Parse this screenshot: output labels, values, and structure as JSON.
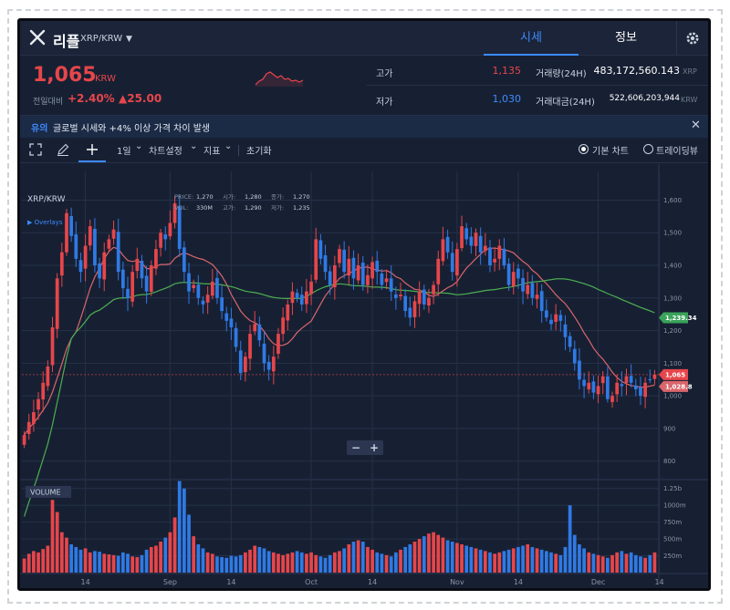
{
  "header": {
    "coin_name": "리플",
    "coin_pair": "XRP/KRW",
    "tabs": [
      {
        "label": "시세"
      },
      {
        "label": "정보"
      }
    ]
  },
  "price": {
    "current": "1,065",
    "unit": "KRW",
    "change_label": "전일대비",
    "change_pct": "+2.40%",
    "change_abs": "▲25.00"
  },
  "stats": {
    "high_label": "고가",
    "high_value": "1,135",
    "low_label": "저가",
    "low_value": "1,030",
    "volume_label": "거래량(24H)",
    "volume_value": "483,172,560.143",
    "volume_unit": "XRP",
    "amount_label": "거래대금(24H)",
    "amount_value": "522,606,203,944",
    "amount_unit": "KRW"
  },
  "notice": {
    "tag": "유의",
    "text": "글로벌 시세와 +4% 이상 가격 차이 발생"
  },
  "toolbar": {
    "interval": "1일",
    "chart_settings": "차트설정",
    "indicators": "지표",
    "reset": "초기화",
    "basic_chart": "기본 차트",
    "tradingview": "트레이딩뷰"
  },
  "chart_info": {
    "symbol": "XRP/KRW",
    "overlays": "▶ Overlays",
    "price_label": "PRICE:",
    "price_val": "1,270",
    "vol_label": "VOL:",
    "vol_val": "330M",
    "open_label": "시가:",
    "open_val": "1,280",
    "high_label": "고가:",
    "high_val": "1,290",
    "close_label": "종가:",
    "close_val": "1,270",
    "low_label": "저가:",
    "low_val": "1,235",
    "volume_panel": "VOLUME",
    "ma_long_badge": "1,239.34",
    "last_price_badge": "1,065",
    "ma_short_badge": "1,028.8"
  },
  "chart_data": {
    "type": "candlestick",
    "price_axis": {
      "ticks": [
        800,
        900,
        1000,
        1100,
        1200,
        1300,
        1400,
        1500,
        1600
      ],
      "tick_labels": [
        "800",
        "900",
        "1,000",
        "1,100",
        "1,200",
        "1,300",
        "1,400",
        "1,500",
        "1,600"
      ],
      "range": [
        760,
        1660
      ]
    },
    "volume_axis": {
      "ticks": [
        250,
        500,
        750,
        1000,
        1250
      ],
      "tick_labels": [
        "250m",
        "500m",
        "750m",
        "1000m",
        "1.25b"
      ],
      "range": [
        0,
        1300
      ]
    },
    "x_labels": [
      "14",
      "Sep",
      "14",
      "Oct",
      "14",
      "Nov",
      "14",
      "Dec",
      "14"
    ],
    "x_label_days": [
      13,
      31,
      44,
      61,
      74,
      92,
      105,
      122,
      135
    ],
    "last_price_line": 1065,
    "ma_long_end": 1239.34,
    "ma_short_end": 1028.8,
    "colors": {
      "up": "#e6464b",
      "down": "#2f7ae5",
      "ma_short": "#d9666b",
      "ma_long": "#4caf50",
      "grid": "#263049"
    },
    "closes": [
      880,
      920,
      950,
      990,
      1040,
      1090,
      1210,
      1360,
      1440,
      1560,
      1490,
      1420,
      1380,
      1460,
      1520,
      1400,
      1360,
      1440,
      1480,
      1510,
      1380,
      1330,
      1300,
      1380,
      1420,
      1360,
      1320,
      1400,
      1450,
      1500,
      1480,
      1530,
      1590,
      1450,
      1380,
      1320,
      1340,
      1300,
      1280,
      1310,
      1350,
      1300,
      1260,
      1230,
      1210,
      1150,
      1070,
      1120,
      1190,
      1220,
      1170,
      1100,
      1080,
      1120,
      1190,
      1240,
      1280,
      1320,
      1300,
      1280,
      1320,
      1350,
      1480,
      1420,
      1380,
      1340,
      1400,
      1450,
      1380,
      1420,
      1360,
      1400,
      1340,
      1370,
      1410,
      1380,
      1340,
      1360,
      1320,
      1300,
      1310,
      1260,
      1240,
      1290,
      1320,
      1280,
      1300,
      1340,
      1420,
      1480,
      1440,
      1380,
      1450,
      1520,
      1480,
      1460,
      1500,
      1440,
      1460,
      1400,
      1420,
      1460,
      1400,
      1340,
      1380,
      1360,
      1320,
      1340,
      1300,
      1310,
      1260,
      1240,
      1220,
      1250,
      1230,
      1180,
      1150,
      1100,
      1050,
      1030,
      1040,
      1010,
      1030,
      1060,
      990,
      1000,
      1040,
      1030,
      1060,
      1040,
      1020,
      1000,
      1040,
      1050,
      1065
    ],
    "volumes": [
      210,
      280,
      320,
      300,
      350,
      400,
      1080,
      900,
      600,
      520,
      420,
      380,
      340,
      360,
      300,
      320,
      310,
      280,
      270,
      260,
      250,
      300,
      280,
      240,
      230,
      260,
      340,
      380,
      400,
      460,
      520,
      600,
      820,
      1360,
      1250,
      860,
      540,
      420,
      360,
      300,
      280,
      240,
      230,
      220,
      250,
      240,
      260,
      300,
      340,
      400,
      380,
      360,
      320,
      300,
      280,
      260,
      280,
      300,
      320,
      300,
      280,
      300,
      260,
      240,
      220,
      260,
      300,
      320,
      360,
      420,
      460,
      480,
      460,
      380,
      340,
      300,
      280,
      260,
      240,
      300,
      340,
      380,
      420,
      460,
      500,
      540,
      580,
      600,
      560,
      520,
      480,
      460,
      440,
      420,
      400,
      380,
      360,
      340,
      320,
      300,
      280,
      300,
      320,
      340,
      360,
      380,
      400,
      420,
      380,
      360,
      340,
      320,
      300,
      280,
      260,
      380,
      1000,
      560,
      420,
      360,
      300,
      280,
      260,
      240,
      220,
      260,
      300,
      320,
      280,
      300,
      260,
      240,
      220,
      260,
      300,
      320
    ]
  }
}
